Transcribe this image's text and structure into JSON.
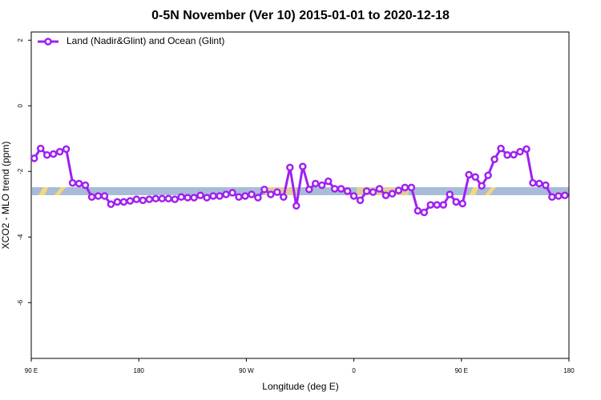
{
  "chart_data": {
    "type": "line",
    "title": "0-5N November (Ver 10)   2015-01-01 to 2020-12-18",
    "x_label": "Longitude (deg E)",
    "y_label": "XCO2 - MLO trend (ppm)",
    "xlim": [
      90,
      540
    ],
    "ylim": [
      -7.7,
      2.25
    ],
    "xticks": [
      {
        "value": 90,
        "label": "90 E"
      },
      180,
      {
        "value": 270,
        "label": "90 W"
      },
      {
        "value": 360,
        "label": "0"
      },
      {
        "value": 450,
        "label": "90 E"
      },
      {
        "value": 540,
        "label": "180"
      }
    ],
    "yticks": [
      2,
      0,
      -2,
      -4,
      -6
    ],
    "legend": "top-left",
    "x": [
      92.5,
      97.85,
      103.2,
      108.55,
      113.9,
      119.25,
      124.6,
      129.95,
      135.3,
      140.65,
      146.0,
      151.35,
      156.7,
      162.05,
      167.4,
      172.75,
      178.1,
      183.45,
      188.8,
      194.15,
      199.5,
      204.85,
      210.2,
      215.55,
      220.9,
      226.25,
      231.6,
      236.95,
      242.3,
      247.65,
      253.0,
      258.35,
      263.7,
      269.05,
      274.4,
      279.75,
      285.1,
      290.45,
      295.8,
      301.15,
      306.5,
      311.85,
      317.2,
      322.55,
      327.9,
      333.25,
      338.6,
      343.95,
      349.3,
      354.65,
      360.0,
      365.35,
      370.7,
      376.05,
      381.4,
      386.75,
      392.1,
      397.45,
      402.8,
      408.15,
      413.5,
      418.85,
      424.2,
      429.55,
      434.9,
      440.25,
      445.6,
      450.95,
      456.3,
      461.65,
      467.0,
      472.35,
      477.7,
      483.05,
      488.4,
      493.75,
      499.1,
      504.45,
      509.8,
      515.15,
      520.5,
      525.85,
      531.2,
      536.55
    ],
    "series": [
      {
        "name": "Land (Nadir&Glint) and Ocean (Glint)",
        "color": "#a020f0",
        "values": [
          -1.6,
          -1.3,
          -1.5,
          -1.47,
          -1.4,
          -1.32,
          -2.35,
          -2.37,
          -2.42,
          -2.78,
          -2.75,
          -2.75,
          -3.0,
          -2.93,
          -2.93,
          -2.9,
          -2.85,
          -2.88,
          -2.85,
          -2.83,
          -2.83,
          -2.83,
          -2.85,
          -2.78,
          -2.8,
          -2.8,
          -2.73,
          -2.8,
          -2.75,
          -2.75,
          -2.7,
          -2.65,
          -2.78,
          -2.75,
          -2.7,
          -2.8,
          -2.55,
          -2.7,
          -2.63,
          -2.78,
          -1.88,
          -3.05,
          -1.85,
          -2.55,
          -2.37,
          -2.42,
          -2.3,
          -2.53,
          -2.53,
          -2.6,
          -2.75,
          -2.88,
          -2.6,
          -2.63,
          -2.53,
          -2.73,
          -2.68,
          -2.58,
          -2.49,
          -2.49,
          -3.2,
          -3.25,
          -3.02,
          -3.02,
          -3.02,
          -2.7,
          -2.93,
          -2.98,
          -2.1,
          -2.17,
          -2.44,
          -2.12,
          -1.63,
          -1.3,
          -1.5,
          -1.49,
          -1.4,
          -1.32,
          -2.35,
          -2.37,
          -2.42,
          -2.78,
          -2.75,
          -2.73
        ]
      }
    ]
  }
}
